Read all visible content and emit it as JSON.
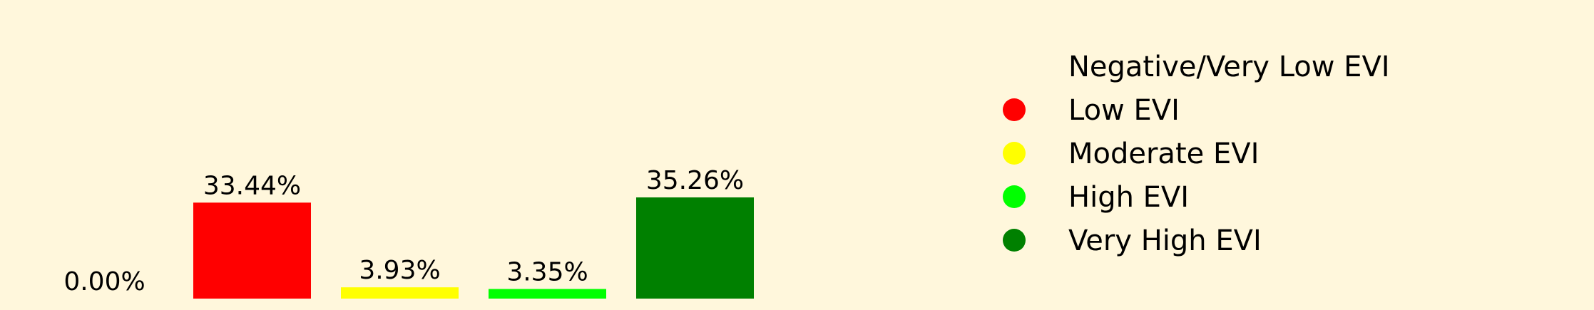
{
  "colors": {
    "background": "#fff7dc"
  },
  "chart_data": {
    "type": "bar",
    "categories": [
      "Negative/Very Low EVI",
      "Low EVI",
      "Moderate EVI",
      "High EVI",
      "Very High EVI"
    ],
    "values": [
      0.0,
      33.44,
      3.93,
      3.35,
      35.26
    ],
    "value_labels": [
      "0.00%",
      "33.44%",
      "3.93%",
      "3.35%",
      "35.26%"
    ],
    "colors": [
      "#fff7dc",
      "#ff0000",
      "#ffff00",
      "#00ff00",
      "#008000"
    ],
    "unit": "%",
    "ylim": [
      0,
      35.26
    ],
    "grid": false,
    "axes_visible": false,
    "legend": {
      "placement": "right",
      "entries": [
        "Negative/Very Low EVI",
        "Low EVI",
        "Moderate EVI",
        "High EVI",
        "Very High EVI"
      ]
    }
  }
}
